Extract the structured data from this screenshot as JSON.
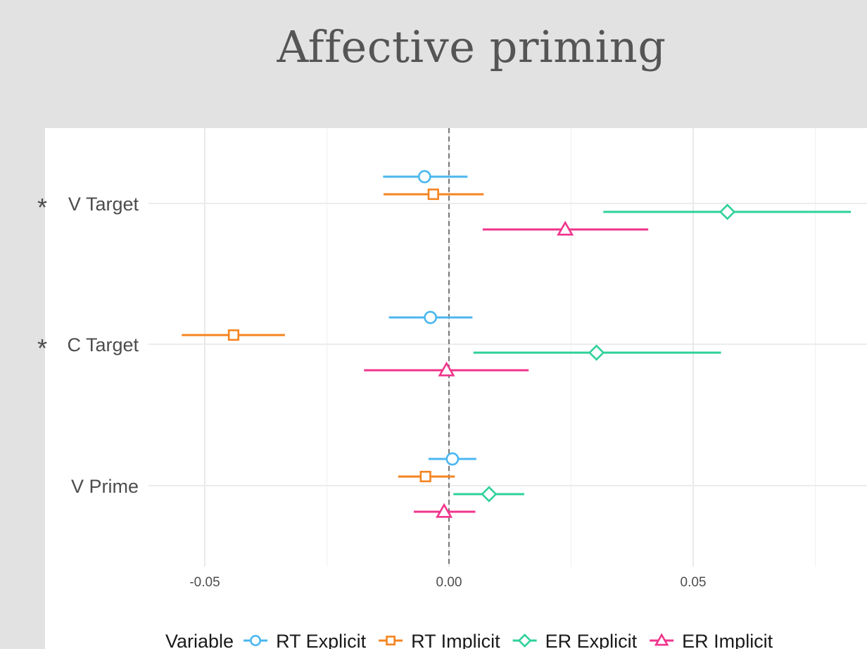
{
  "chart_data": {
    "type": "scatter",
    "subtype": "forest-plot (point estimate with confidence interval)",
    "title": "Affective priming",
    "xlabel": "",
    "ylabel": "",
    "xlim": [
      -0.0785,
      0.085
    ],
    "x_ticks": [
      -0.05,
      0.0,
      0.05
    ],
    "x_tick_labels": [
      "-0.05",
      "0.00",
      "0.05"
    ],
    "reference_line": {
      "x": 0,
      "style": "dashed"
    },
    "grid": true,
    "categories": [
      "* V Target",
      "* C Target",
      "V Prime"
    ],
    "category_labels": [
      {
        "marker": "*",
        "name": "V Target"
      },
      {
        "marker": "*",
        "name": "C Target"
      },
      {
        "marker": "",
        "name": "V Prime"
      }
    ],
    "legend": {
      "title": "Variable",
      "position": "bottom"
    },
    "series": [
      {
        "name": "RT Explicit",
        "color": "#4ab7f0",
        "shape": "circle-open",
        "points": [
          {
            "category": "V Target",
            "estimate": -0.005,
            "lower": -0.0135,
            "upper": 0.0038
          },
          {
            "category": "C Target",
            "estimate": -0.0038,
            "lower": -0.0123,
            "upper": 0.0048
          },
          {
            "category": "V Prime",
            "estimate": 0.0007,
            "lower": -0.0042,
            "upper": 0.0056
          }
        ]
      },
      {
        "name": "RT Implicit",
        "color": "#f5841f",
        "shape": "square-open",
        "points": [
          {
            "category": "V Target",
            "estimate": -0.0032,
            "lower": -0.0134,
            "upper": 0.0071
          },
          {
            "category": "C Target",
            "estimate": -0.0441,
            "lower": -0.0547,
            "upper": -0.0336
          },
          {
            "category": "V Prime",
            "estimate": -0.0048,
            "lower": -0.0104,
            "upper": 0.0012
          }
        ]
      },
      {
        "name": "ER Explicit",
        "color": "#2ed199",
        "shape": "diamond-open",
        "points": [
          {
            "category": "V Target",
            "estimate": 0.057,
            "lower": 0.0316,
            "upper": 0.0823
          },
          {
            "category": "C Target",
            "estimate": 0.0302,
            "lower": 0.005,
            "upper": 0.0557
          },
          {
            "category": "V Prime",
            "estimate": 0.0082,
            "lower": 0.0009,
            "upper": 0.0154
          }
        ]
      },
      {
        "name": "ER Implicit",
        "color": "#f0348c",
        "shape": "triangle-open",
        "points": [
          {
            "category": "V Target",
            "estimate": 0.0238,
            "lower": 0.0069,
            "upper": 0.0408
          },
          {
            "category": "C Target",
            "estimate": -0.0005,
            "lower": -0.0174,
            "upper": 0.0163
          },
          {
            "category": "V Prime",
            "estimate": -0.001,
            "lower": -0.0072,
            "upper": 0.0054
          }
        ]
      }
    ]
  }
}
